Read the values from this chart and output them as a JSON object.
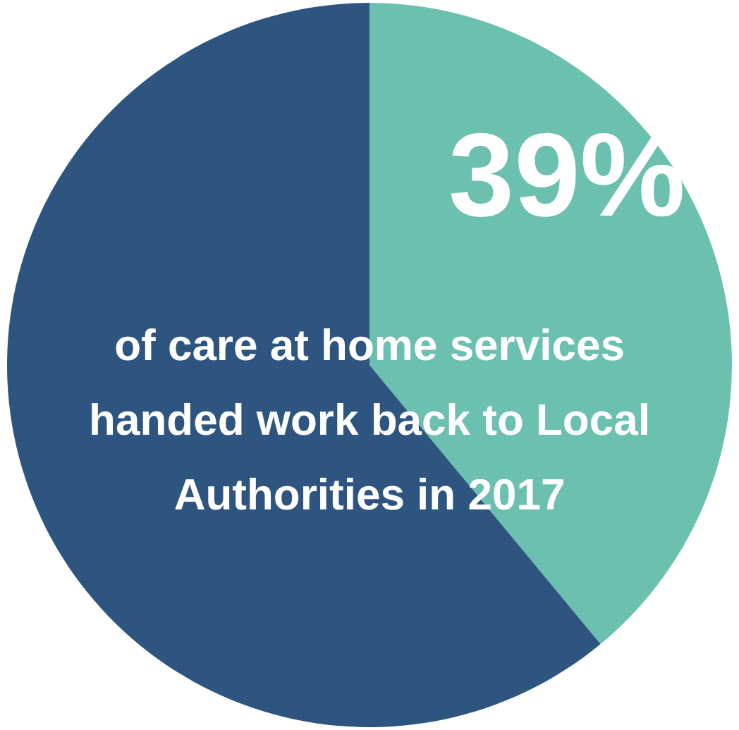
{
  "chart_data": {
    "type": "pie",
    "categories": [
      null,
      null
    ],
    "values": [
      39,
      61
    ],
    "colors": [
      "#6cc0b0",
      "#2d5580"
    ],
    "value_labels": [
      "39%",
      null
    ],
    "legend": false,
    "annotations": [
      "of care at home services handed work back to Local Authorities in 2017"
    ]
  }
}
